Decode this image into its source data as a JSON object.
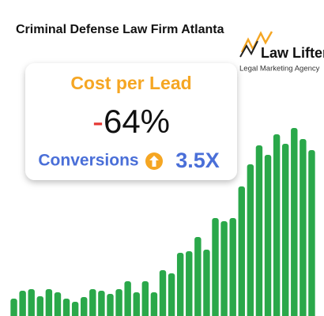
{
  "chart_data": {
    "type": "bar",
    "title": "Criminal Defense Law Firm Atlanta",
    "color": "#2aa84a",
    "values": [
      22,
      32,
      34,
      25,
      34,
      30,
      22,
      18,
      24,
      34,
      32,
      28,
      34,
      44,
      30,
      44,
      30,
      58,
      54,
      80,
      82,
      100,
      84,
      124,
      120,
      124,
      164,
      192,
      216,
      204,
      230,
      218,
      238,
      224,
      210
    ]
  },
  "card": {
    "heading": "Cost per Lead",
    "change": "-64%",
    "metric": "Conversions",
    "multiplier": "3.5X"
  },
  "logo": {
    "name": "Law Lifters",
    "tagline": "Legal Marketing Agency"
  }
}
